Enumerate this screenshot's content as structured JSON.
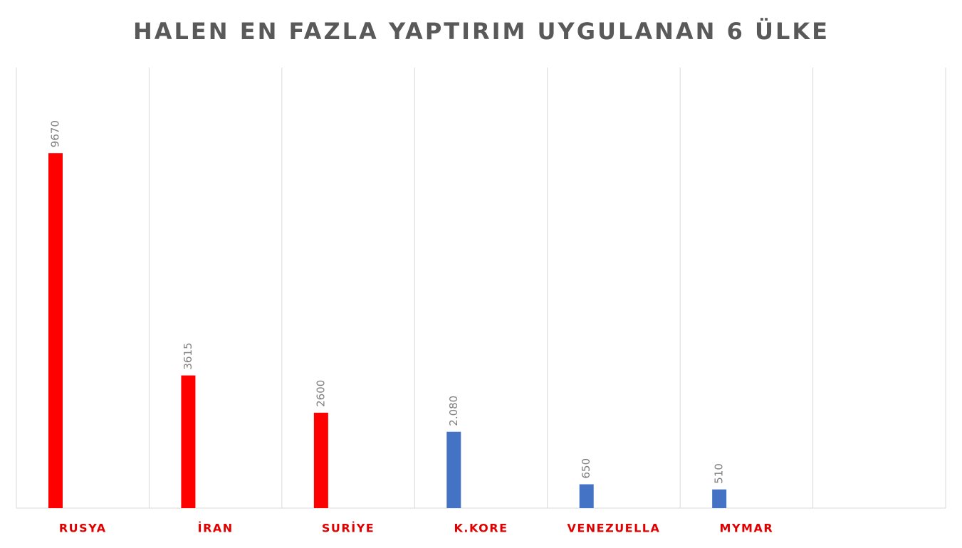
{
  "chart_data": {
    "type": "bar",
    "title": "HALEN EN FAZLA YAPTIRIM UYGULANAN 6 ÜLKE",
    "categories": [
      "RUSYA",
      "İRAN",
      "SURİYE",
      "K.KORE",
      "VENEZUELLA",
      "MYMAR",
      null
    ],
    "values": [
      9670,
      3615,
      2600,
      2080,
      650,
      510,
      null
    ],
    "value_labels": [
      "9670",
      "3615",
      "2600",
      "2.080",
      "650",
      "510",
      null
    ],
    "colors": [
      "#ff0000",
      "#ff0000",
      "#ff0000",
      "#4472c4",
      "#4472c4",
      "#4472c4",
      null
    ],
    "category_label_color": "#e00000",
    "ylim": [
      0,
      12000
    ],
    "grid": true
  }
}
